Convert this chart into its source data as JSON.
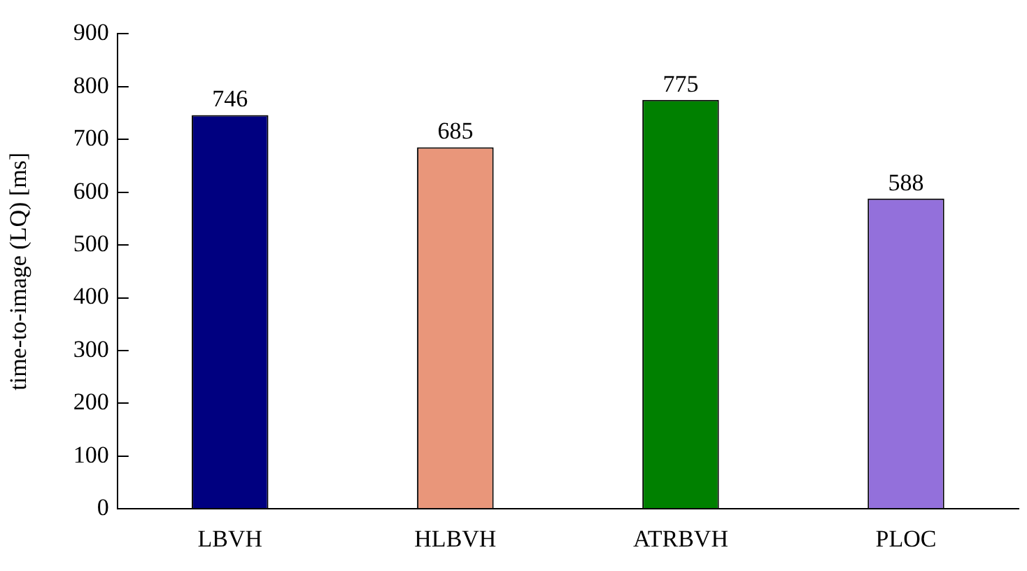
{
  "chart_data": {
    "type": "bar",
    "ylabel": "time-to-image (LQ) [ms]",
    "categories": [
      "LBVH",
      "HLBVH",
      "ATRBVH",
      "PLOC"
    ],
    "values": [
      746,
      685,
      775,
      588
    ],
    "colors": [
      "#000080",
      "#e9967a",
      "#008000",
      "#9370db"
    ],
    "ylim": [
      0,
      900
    ],
    "yticks": [
      0,
      100,
      200,
      300,
      400,
      500,
      600,
      700,
      800,
      900
    ],
    "grid": false,
    "legend": false,
    "data_labels": true
  }
}
